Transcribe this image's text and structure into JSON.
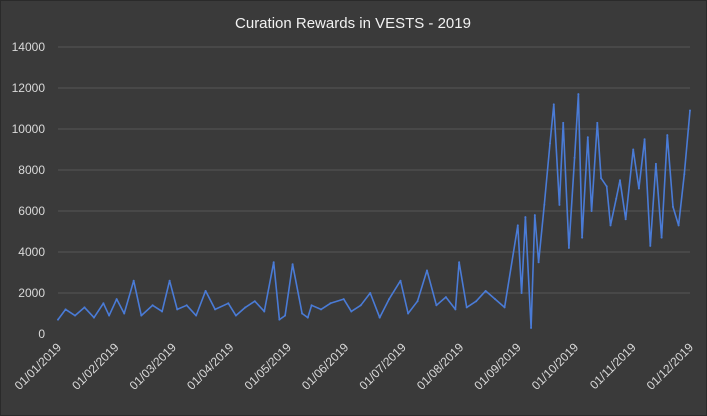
{
  "chart_data": {
    "type": "line",
    "title": "Curation Rewards in VESTS - 2019",
    "xlabel": "",
    "ylabel": "",
    "ylim": [
      0,
      14000
    ],
    "yticks": [
      0,
      2000,
      4000,
      6000,
      8000,
      10000,
      12000,
      14000
    ],
    "xticks": [
      "01/01/2019",
      "01/02/2019",
      "01/03/2019",
      "01/04/2019",
      "01/05/2019",
      "01/06/2019",
      "01/07/2019",
      "01/08/2019",
      "01/09/2019",
      "01/10/2019",
      "01/11/2019",
      "01/12/2019"
    ],
    "x_start": "2019-01-01",
    "x_end": "2019-12-01",
    "grid": true,
    "legend": "none",
    "line_color": "#4a7bd6",
    "series": [
      {
        "name": "",
        "x": [
          "2019-01-01",
          "2019-01-05",
          "2019-01-10",
          "2019-01-15",
          "2019-01-20",
          "2019-01-25",
          "2019-01-28",
          "2019-02-01",
          "2019-02-05",
          "2019-02-10",
          "2019-02-14",
          "2019-02-20",
          "2019-02-25",
          "2019-03-01",
          "2019-03-05",
          "2019-03-10",
          "2019-03-15",
          "2019-03-20",
          "2019-03-25",
          "2019-04-01",
          "2019-04-05",
          "2019-04-10",
          "2019-04-15",
          "2019-04-20",
          "2019-04-25",
          "2019-04-28",
          "2019-05-01",
          "2019-05-05",
          "2019-05-10",
          "2019-05-13",
          "2019-05-15",
          "2019-05-20",
          "2019-05-25",
          "2019-06-01",
          "2019-06-05",
          "2019-06-10",
          "2019-06-15",
          "2019-06-20",
          "2019-06-25",
          "2019-07-01",
          "2019-07-05",
          "2019-07-10",
          "2019-07-15",
          "2019-07-20",
          "2019-07-25",
          "2019-07-30",
          "2019-08-01",
          "2019-08-05",
          "2019-08-10",
          "2019-08-15",
          "2019-08-20",
          "2019-08-25",
          "2019-09-01",
          "2019-09-03",
          "2019-09-05",
          "2019-09-08",
          "2019-09-10",
          "2019-09-12",
          "2019-09-15",
          "2019-09-18",
          "2019-09-20",
          "2019-09-23",
          "2019-09-25",
          "2019-09-28",
          "2019-10-01",
          "2019-10-03",
          "2019-10-05",
          "2019-10-08",
          "2019-10-10",
          "2019-10-13",
          "2019-10-15",
          "2019-10-18",
          "2019-10-20",
          "2019-10-23",
          "2019-10-25",
          "2019-10-28",
          "2019-11-01",
          "2019-11-04",
          "2019-11-07",
          "2019-11-10",
          "2019-11-13",
          "2019-11-16",
          "2019-11-19",
          "2019-11-22",
          "2019-11-25",
          "2019-11-28",
          "2019-12-01"
        ],
        "y": [
          700,
          1200,
          900,
          1300,
          800,
          1500,
          900,
          1700,
          1000,
          2600,
          900,
          1400,
          1100,
          2600,
          1200,
          1400,
          900,
          2100,
          1200,
          1500,
          900,
          1300,
          1600,
          1100,
          3500,
          700,
          900,
          3400,
          1000,
          800,
          1400,
          1200,
          1500,
          1700,
          1100,
          1400,
          2000,
          800,
          1700,
          2600,
          1000,
          1600,
          3100,
          1400,
          1800,
          1200,
          3500,
          1300,
          1600,
          2100,
          1700,
          1300,
          5300,
          2000,
          5700,
          300,
          5800,
          3500,
          6300,
          9300,
          11200,
          6300,
          10300,
          4200,
          8600,
          11700,
          4700,
          9600,
          6000,
          10300,
          7600,
          7200,
          5300,
          6600,
          7500,
          5600,
          9000,
          7100,
          9500,
          4300,
          8300,
          4700,
          9700,
          6200,
          5300,
          7800,
          10900
        ]
      }
    ]
  }
}
